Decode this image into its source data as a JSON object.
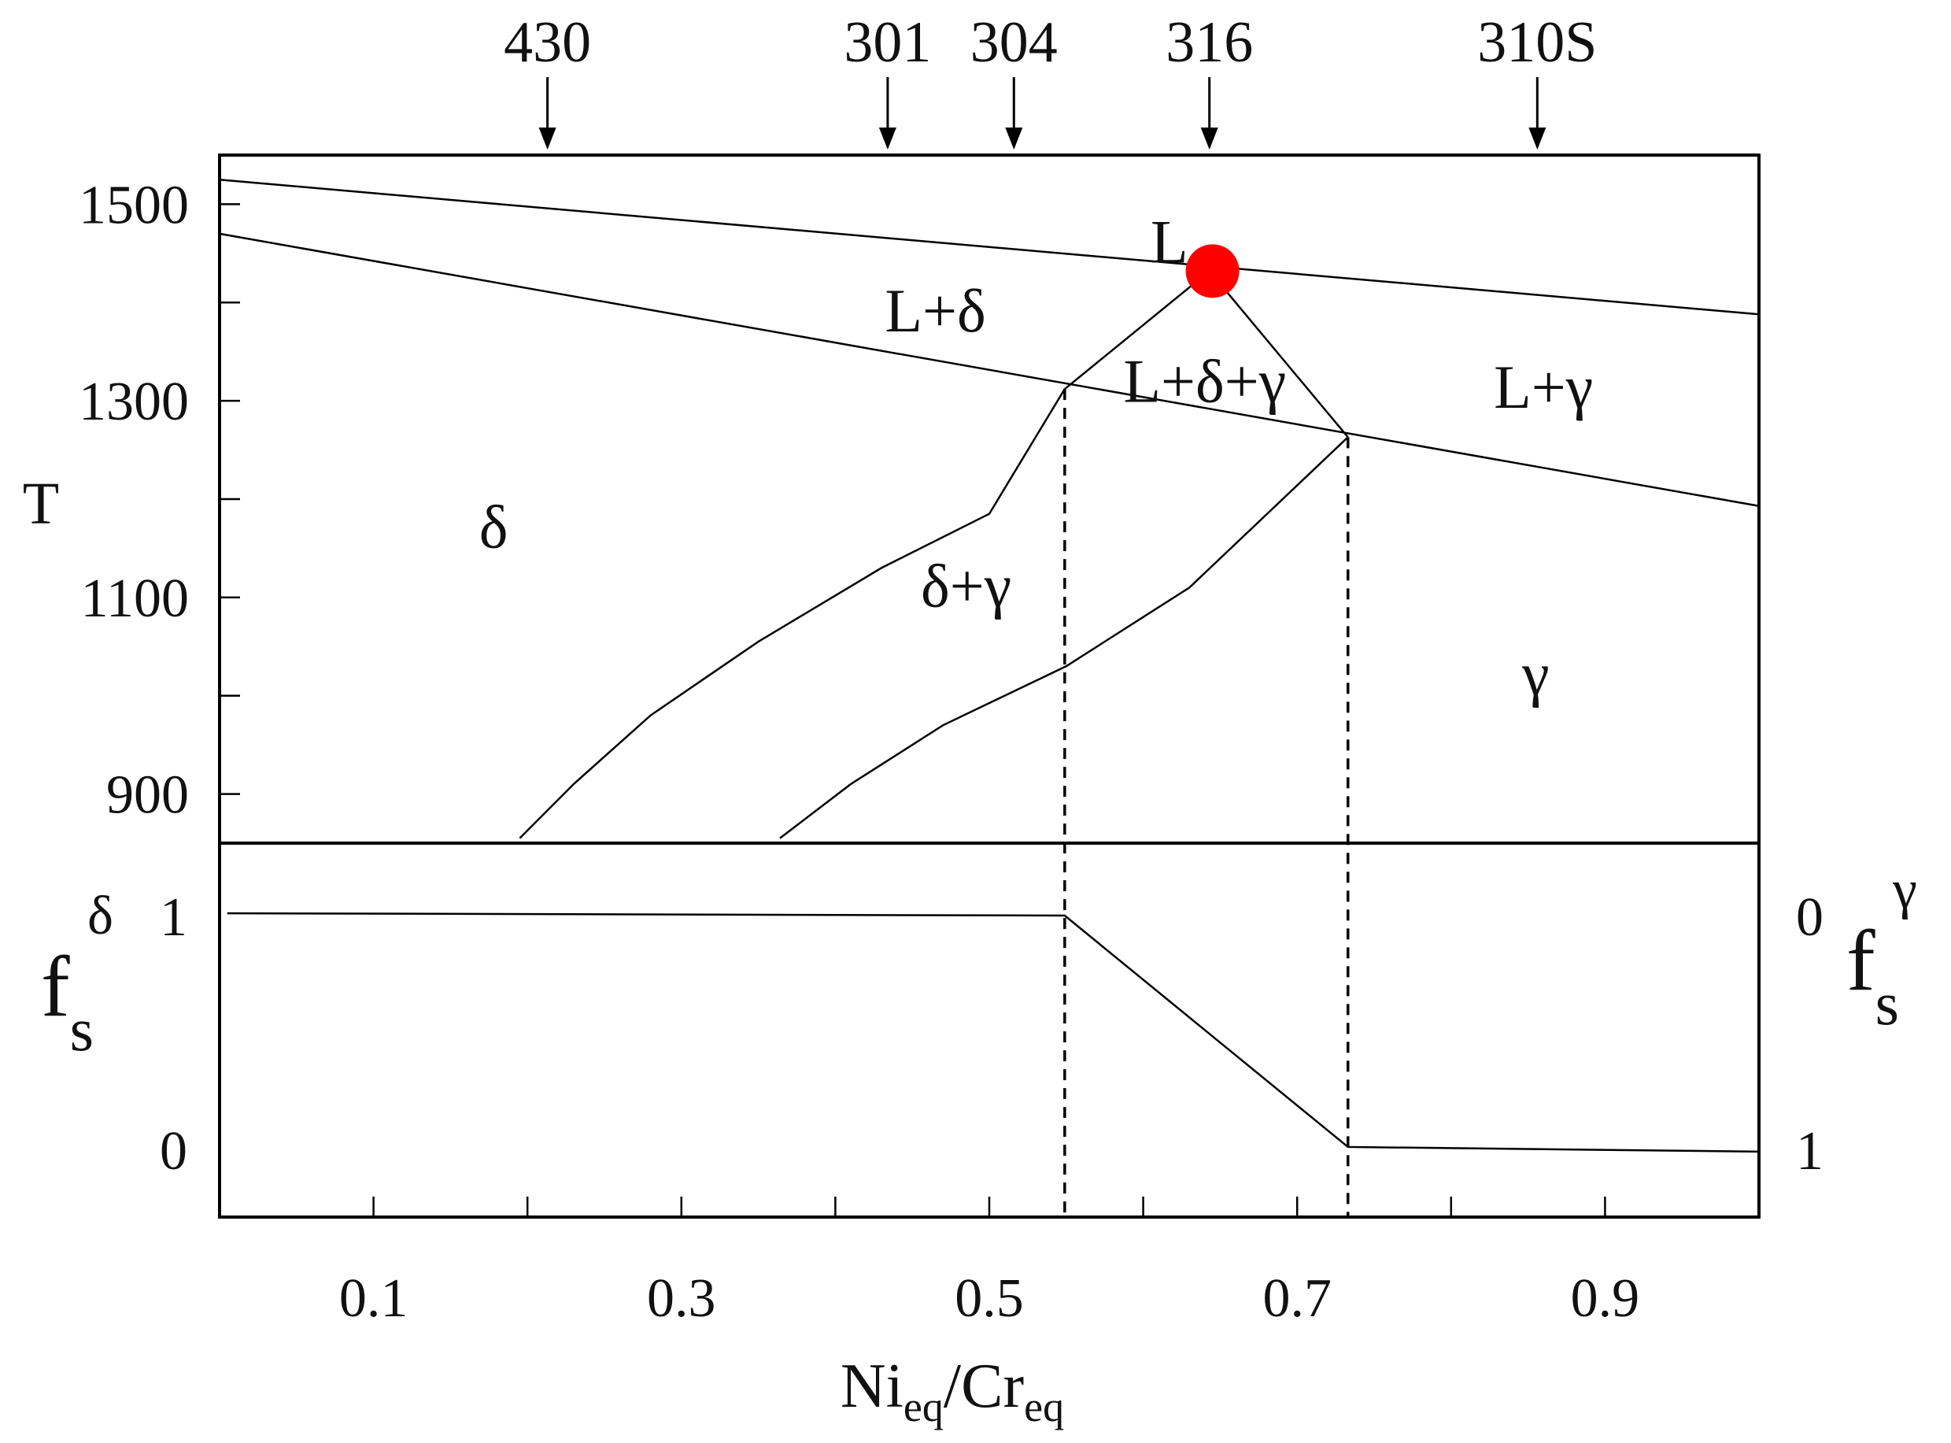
{
  "chart_data": {
    "type": "line",
    "x_axis": {
      "label_main": "Ni",
      "label_sub1": "eq",
      "label_mid": "/Cr",
      "label_sub2": "eq",
      "range": [
        0,
        1
      ],
      "tick_labels": [
        {
          "value": 0.1,
          "label": "0.1"
        },
        {
          "value": 0.3,
          "label": "0.3"
        },
        {
          "value": 0.5,
          "label": "0.5"
        },
        {
          "value": 0.7,
          "label": "0.7"
        },
        {
          "value": 0.9,
          "label": "0.9"
        }
      ],
      "minor_ticks": [
        0.2,
        0.4,
        0.6,
        0.8
      ]
    },
    "top_panel": {
      "ylabel": "T",
      "ylim": [
        850,
        1550
      ],
      "ytick_labels": [
        {
          "value": 1500,
          "label": "1500"
        },
        {
          "value": 1300,
          "label": "1300"
        },
        {
          "value": 1100,
          "label": "1100"
        },
        {
          "value": 900,
          "label": "900"
        }
      ],
      "minor_ticks": [
        1400,
        1200,
        1000
      ],
      "lines": [
        {
          "name": "liquidus",
          "points": [
            [
              0,
              1525
            ],
            [
              1,
              1388
            ]
          ]
        },
        {
          "name": "solidus",
          "points": [
            [
              0,
              1470
            ],
            [
              1,
              1193
            ]
          ]
        },
        {
          "name": "delta-boundary-upper",
          "points": [
            [
              0.549,
              1312
            ],
            [
              0.643,
              1432
            ]
          ]
        },
        {
          "name": "gamma-boundary-upper",
          "points": [
            [
              0.643,
              1432
            ],
            [
              0.733,
              1263
            ]
          ]
        },
        {
          "name": "delta-solvus",
          "points": [
            [
              0.195,
              855
            ],
            [
              0.23,
              910
            ],
            [
              0.28,
              980
            ],
            [
              0.35,
              1055
            ],
            [
              0.43,
              1130
            ],
            [
              0.5,
              1185
            ],
            [
              0.549,
              1312
            ]
          ]
        },
        {
          "name": "gamma-solvus",
          "points": [
            [
              0.364,
              855
            ],
            [
              0.41,
              910
            ],
            [
              0.47,
              970
            ],
            [
              0.55,
              1030
            ],
            [
              0.63,
              1110
            ],
            [
              0.733,
              1263
            ]
          ]
        }
      ],
      "eutectic_point": {
        "x": 0.645,
        "y": 1432,
        "color": "#ff0000"
      },
      "phase_labels": [
        {
          "text": "L",
          "x": 0.617,
          "y": 1460
        },
        {
          "text": "L+δ",
          "x": 0.465,
          "y": 1390
        },
        {
          "text": "L+δ+γ",
          "x": 0.64,
          "y": 1318
        },
        {
          "text": "L+γ",
          "x": 0.86,
          "y": 1312
        },
        {
          "text": "δ",
          "x": 0.178,
          "y": 1170
        },
        {
          "text": "δ+γ",
          "x": 0.485,
          "y": 1110
        },
        {
          "text": "γ",
          "x": 0.855,
          "y": 1020
        }
      ],
      "alloy_markers": [
        {
          "label": "430",
          "x": 0.213
        },
        {
          "label": "301",
          "x": 0.434
        },
        {
          "label": "304",
          "x": 0.516
        },
        {
          "label": "316",
          "x": 0.643
        },
        {
          "label": "310S",
          "x": 0.856
        }
      ]
    },
    "bottom_panel": {
      "left_label": "f",
      "left_label_sub": "s",
      "left_label_sup": "δ",
      "right_label": "f",
      "right_label_sub": "s",
      "right_label_sup": "γ",
      "left_ytick_labels": [
        {
          "value": 1,
          "label": "1"
        },
        {
          "value": 0,
          "label": "0"
        }
      ],
      "right_ytick_labels": [
        {
          "value": 1,
          "label": "0"
        },
        {
          "value": 0,
          "label": "1"
        }
      ],
      "ylim": [
        -0.3,
        1.3
      ],
      "series": [
        {
          "name": "fraction",
          "points": [
            [
              0.005,
              1.0
            ],
            [
              0.549,
              0.99
            ],
            [
              0.733,
              0.0
            ],
            [
              1,
              -0.02
            ]
          ]
        }
      ]
    },
    "dashed_verticals": [
      0.549,
      0.733
    ],
    "grid": false
  }
}
